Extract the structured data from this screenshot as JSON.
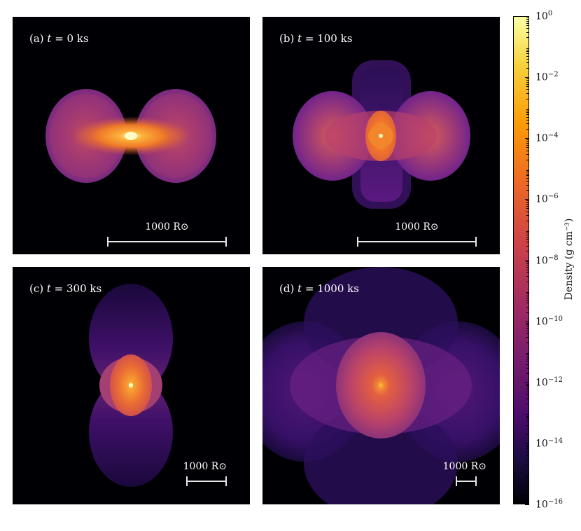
{
  "panels": {
    "a": {
      "label_pre": "(a) ",
      "label_var": "t",
      "label_post": " = 0 ks",
      "scale_label": "1000 R⊙"
    },
    "b": {
      "label_pre": "(b) ",
      "label_var": "t",
      "label_post": " = 100 ks",
      "scale_label": "1000 R⊙"
    },
    "c": {
      "label_pre": "(c) ",
      "label_var": "t",
      "label_post": " = 300 ks",
      "scale_label": "1000 R⊙"
    },
    "d": {
      "label_pre": "(d) ",
      "label_var": "t",
      "label_post": " = 1000 ks",
      "scale_label": "1000 R⊙"
    }
  },
  "colorbar": {
    "title": "Density (g cm⁻³)",
    "colormap": "inferno",
    "scale": "log",
    "ticks": [
      {
        "base": "10",
        "exp": "0"
      },
      {
        "base": "10",
        "exp": "−2"
      },
      {
        "base": "10",
        "exp": "−4"
      },
      {
        "base": "10",
        "exp": "−6"
      },
      {
        "base": "10",
        "exp": "−8"
      },
      {
        "base": "10",
        "exp": "−10"
      },
      {
        "base": "10",
        "exp": "−12"
      },
      {
        "base": "10",
        "exp": "−14"
      },
      {
        "base": "10",
        "exp": "−16"
      }
    ]
  }
}
